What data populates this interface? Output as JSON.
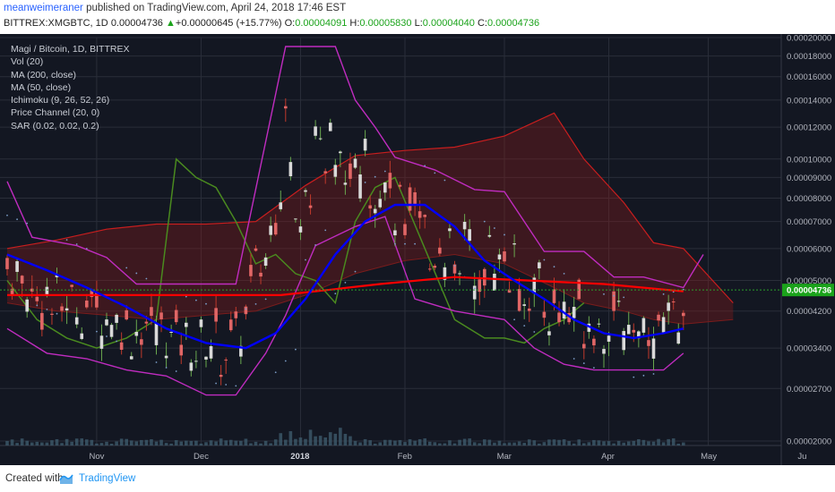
{
  "header": {
    "author": "meanweimeraner",
    "published": "published on TradingView.com, April 24, 2018 17:46 EST",
    "symbol": "BITTREX:XMGBTC, 1D",
    "last": "0.00004736",
    "change_arrow": "▲",
    "change": "+0.00000645 (+15.77%)",
    "o_label": "O:",
    "o": "0.00004091",
    "h_label": "H:",
    "h": "0.00005830",
    "l_label": "L:",
    "l": "0.00004040",
    "c_label": "C:",
    "c": "0.00004736"
  },
  "legend": {
    "title": "Magi / Bitcoin, 1D, BITTREX",
    "items": [
      "Vol (20)",
      "MA (200, close)",
      "MA (50, close)",
      "Ichimoku (9, 26, 52, 26)",
      "Price Channel (20, 0)",
      "SAR (0.02, 0.02, 0.2)"
    ]
  },
  "footer": {
    "created_with": "Created with",
    "brand": "TradingView"
  },
  "colors": {
    "background": "#131722",
    "grid": "#2a2e39",
    "up_candle": "#d9d9d9",
    "down_candle": "#d9d9d9",
    "ma200": "#ff0000",
    "ma50": "#0000ff",
    "ichimoku_lagging": "#4a8a1f",
    "ichimoku_cloud": "#8b1a1a",
    "price_channel": "#c02cc0",
    "sar": "#7a9cc6",
    "last_price_label": "#1ba31b"
  },
  "chart_data": {
    "type": "candlestick",
    "title": "Magi / Bitcoin, 1D, BITTREX",
    "scale": "log",
    "x_tick_labels": [
      "Nov",
      "Dec",
      "2018",
      "Feb",
      "Mar",
      "Apr",
      "May",
      "Ju"
    ],
    "y_tick_labels": [
      "0.00020000",
      "0.00018000",
      "0.00016000",
      "0.00014000",
      "0.00012000",
      "0.00010000",
      "0.00009000",
      "0.00008000",
      "0.00007000",
      "0.00006000",
      "0.00005000",
      "0.00004200",
      "0.00003400",
      "0.00002700",
      "0.00002000"
    ],
    "y_ticks": [
      0.0002,
      0.00018,
      0.00016,
      0.00014,
      0.00012,
      0.0001,
      9e-05,
      8e-05,
      7e-05,
      6e-05,
      5e-05,
      4.2e-05,
      3.4e-05,
      2.7e-05,
      2e-05
    ],
    "last_price_label": "0.00004736",
    "last_price": 4.736e-05,
    "ma200_level": 4.7e-05,
    "price_channel_upper": [
      [
        0,
        8.8e-05
      ],
      [
        5,
        6.4e-05
      ],
      [
        14,
        6.1e-05
      ],
      [
        20,
        5.7e-05
      ],
      [
        26,
        4.9e-05
      ],
      [
        34,
        4.9e-05
      ],
      [
        46,
        4.9e-05
      ],
      [
        56,
        0.00019
      ],
      [
        66,
        0.00019
      ],
      [
        70,
        0.00014
      ],
      [
        74,
        0.00012
      ],
      [
        78,
        0.000101
      ],
      [
        86,
        9.4e-05
      ],
      [
        94,
        8.4e-05
      ],
      [
        100,
        8.3e-05
      ],
      [
        108,
        5.9e-05
      ],
      [
        116,
        5.9e-05
      ],
      [
        122,
        5.1e-05
      ],
      [
        128,
        5.1e-05
      ],
      [
        136,
        4.8e-05
      ],
      [
        140,
        5.8e-05
      ]
    ],
    "price_channel_lower": [
      [
        0,
        3.8e-05
      ],
      [
        8,
        3.3e-05
      ],
      [
        16,
        3.2e-05
      ],
      [
        24,
        3e-05
      ],
      [
        32,
        2.9e-05
      ],
      [
        40,
        2.6e-05
      ],
      [
        46,
        2.6e-05
      ],
      [
        52,
        3.3e-05
      ],
      [
        56,
        4.1e-05
      ],
      [
        62,
        6.1e-05
      ],
      [
        70,
        6.8e-05
      ],
      [
        76,
        7.2e-05
      ],
      [
        82,
        4.5e-05
      ],
      [
        90,
        4.2e-05
      ],
      [
        100,
        4e-05
      ],
      [
        106,
        3.4e-05
      ],
      [
        112,
        3.1e-05
      ],
      [
        118,
        3e-05
      ],
      [
        124,
        3e-05
      ],
      [
        132,
        3e-05
      ],
      [
        136,
        3.3e-05
      ]
    ],
    "ma50_series": [
      [
        0,
        5.8e-05
      ],
      [
        8,
        5.3e-05
      ],
      [
        16,
        4.8e-05
      ],
      [
        24,
        4.3e-05
      ],
      [
        32,
        3.8e-05
      ],
      [
        40,
        3.5e-05
      ],
      [
        48,
        3.4e-05
      ],
      [
        54,
        3.7e-05
      ],
      [
        60,
        4.5e-05
      ],
      [
        66,
        5.8e-05
      ],
      [
        72,
        7e-05
      ],
      [
        78,
        7.7e-05
      ],
      [
        84,
        7.7e-05
      ],
      [
        90,
        6.8e-05
      ],
      [
        96,
        5.6e-05
      ],
      [
        102,
        5e-05
      ],
      [
        108,
        4.5e-05
      ],
      [
        114,
        4e-05
      ],
      [
        120,
        3.7e-05
      ],
      [
        126,
        3.6e-05
      ],
      [
        132,
        3.7e-05
      ],
      [
        136,
        3.8e-05
      ]
    ],
    "ma200_series": [
      [
        0,
        4.6e-05
      ],
      [
        20,
        4.6e-05
      ],
      [
        40,
        4.6e-05
      ],
      [
        55,
        4.6e-05
      ],
      [
        62,
        4.7e-05
      ],
      [
        75,
        4.9e-05
      ],
      [
        90,
        5.1e-05
      ],
      [
        105,
        5e-05
      ],
      [
        120,
        4.9e-05
      ],
      [
        136,
        4.7e-05
      ]
    ],
    "cloud_top": [
      [
        0,
        6e-05
      ],
      [
        10,
        6.3e-05
      ],
      [
        20,
        6.7e-05
      ],
      [
        30,
        6.9e-05
      ],
      [
        40,
        6.9e-05
      ],
      [
        50,
        7e-05
      ],
      [
        60,
        8.6e-05
      ],
      [
        70,
        0.000102
      ],
      [
        80,
        0.000105
      ],
      [
        90,
        0.000107
      ],
      [
        100,
        0.000114
      ],
      [
        110,
        0.00013
      ],
      [
        116,
        0.0001
      ],
      [
        124,
        7.8e-05
      ],
      [
        130,
        6.2e-05
      ],
      [
        136,
        6e-05
      ],
      [
        146,
        4.4e-05
      ]
    ],
    "cloud_bottom": [
      [
        0,
        4.4e-05
      ],
      [
        10,
        4.2e-05
      ],
      [
        20,
        4.1e-05
      ],
      [
        30,
        4e-05
      ],
      [
        40,
        4.1e-05
      ],
      [
        50,
        4.2e-05
      ],
      [
        60,
        4.6e-05
      ],
      [
        70,
        5.2e-05
      ],
      [
        80,
        5.6e-05
      ],
      [
        90,
        5.8e-05
      ],
      [
        100,
        5.5e-05
      ],
      [
        110,
        4.8e-05
      ],
      [
        116,
        4.4e-05
      ],
      [
        124,
        4.2e-05
      ],
      [
        130,
        4e-05
      ],
      [
        136,
        3.9e-05
      ],
      [
        146,
        4e-05
      ]
    ],
    "lagging_span": [
      [
        0,
        5e-05
      ],
      [
        6,
        4e-05
      ],
      [
        12,
        3.6e-05
      ],
      [
        18,
        3.4e-05
      ],
      [
        24,
        3.6e-05
      ],
      [
        30,
        4e-05
      ],
      [
        34,
        0.0001
      ],
      [
        38,
        9e-05
      ],
      [
        42,
        8.5e-05
      ],
      [
        46,
        7e-05
      ],
      [
        50,
        5.5e-05
      ],
      [
        54,
        5.8e-05
      ],
      [
        58,
        5.2e-05
      ],
      [
        62,
        5e-05
      ],
      [
        66,
        4.4e-05
      ],
      [
        70,
        7e-05
      ],
      [
        74,
        8.5e-05
      ],
      [
        78,
        9e-05
      ],
      [
        84,
        6e-05
      ],
      [
        90,
        4e-05
      ],
      [
        96,
        3.6e-05
      ],
      [
        100,
        3.6e-05
      ],
      [
        104,
        3.5e-05
      ],
      [
        108,
        3.8e-05
      ],
      [
        112,
        4e-05
      ],
      [
        116,
        4.4e-05
      ]
    ],
    "volume_last": 1
  }
}
